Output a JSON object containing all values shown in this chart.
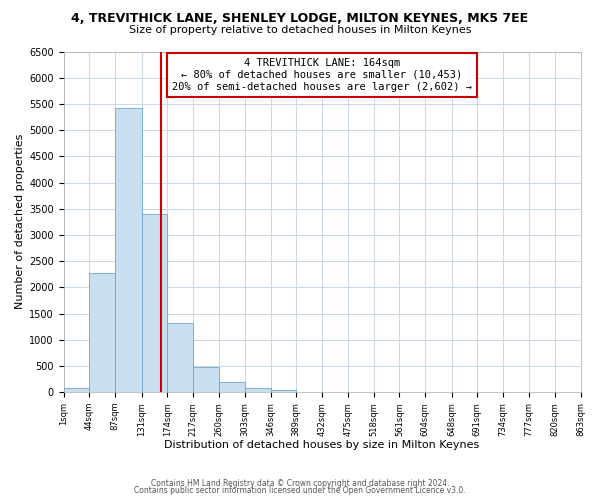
{
  "title": "4, TREVITHICK LANE, SHENLEY LODGE, MILTON KEYNES, MK5 7EE",
  "subtitle": "Size of property relative to detached houses in Milton Keynes",
  "xlabel": "Distribution of detached houses by size in Milton Keynes",
  "ylabel": "Number of detached properties",
  "footer_line1": "Contains HM Land Registry data © Crown copyright and database right 2024.",
  "footer_line2": "Contains public sector information licensed under the Open Government Licence v3.0.",
  "bar_edges": [
    1,
    44,
    87,
    131,
    174,
    217,
    260,
    303,
    346,
    389,
    432,
    475,
    518,
    561,
    604,
    648,
    691,
    734,
    777,
    820,
    863
  ],
  "bar_heights": [
    75,
    2270,
    5430,
    3390,
    1310,
    480,
    185,
    75,
    35,
    10,
    5,
    2,
    0,
    0,
    0,
    0,
    0,
    0,
    0,
    0
  ],
  "bar_color": "#c8dff0",
  "bar_edge_color": "#6fa8c8",
  "property_line_x": 164,
  "property_line_color": "#cc0000",
  "annotation_text": "4 TREVITHICK LANE: 164sqm\n← 80% of detached houses are smaller (10,453)\n20% of semi-detached houses are larger (2,602) →",
  "annotation_box_color": "#ffffff",
  "annotation_box_edge_color": "#cc0000",
  "ylim": [
    0,
    6500
  ],
  "yticks": [
    0,
    500,
    1000,
    1500,
    2000,
    2500,
    3000,
    3500,
    4000,
    4500,
    5000,
    5500,
    6000,
    6500
  ],
  "xtick_labels": [
    "1sqm",
    "44sqm",
    "87sqm",
    "131sqm",
    "174sqm",
    "217sqm",
    "260sqm",
    "303sqm",
    "346sqm",
    "389sqm",
    "432sqm",
    "475sqm",
    "518sqm",
    "561sqm",
    "604sqm",
    "648sqm",
    "691sqm",
    "734sqm",
    "777sqm",
    "820sqm",
    "863sqm"
  ],
  "background_color": "#ffffff",
  "grid_color": "#c8d8e8",
  "xlim": [
    1,
    863
  ]
}
